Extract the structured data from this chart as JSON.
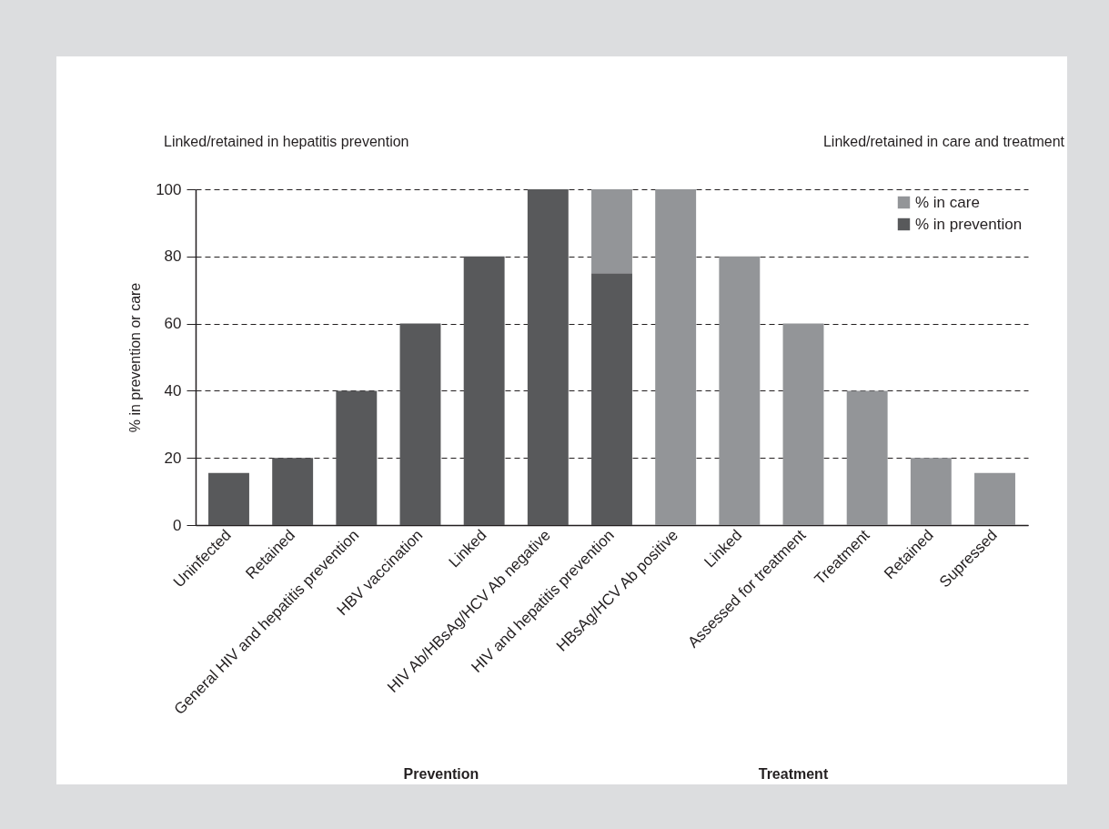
{
  "chart_data": {
    "type": "bar",
    "ylabel": "% in prevention or care",
    "categories": [
      "Uninfected",
      "Retained",
      "General HIV and hepatitis prevention",
      "HBV vaccination",
      "Linked",
      "HIV Ab/HBsAg/HCV Ab negative",
      "HIV and hepatitis prevention",
      "HBsAg/HCV Ab positive",
      "Linked",
      "Assessed for treatment",
      "Treatment",
      "Retained",
      "Supressed"
    ],
    "series": [
      {
        "name": "% in prevention",
        "color": "#58595b",
        "values": [
          15.5,
          20,
          40,
          60,
          80,
          100,
          75,
          null,
          null,
          null,
          null,
          null,
          null
        ]
      },
      {
        "name": "% in care",
        "color": "#939598",
        "values": [
          null,
          null,
          null,
          null,
          null,
          null,
          25,
          100,
          80,
          60,
          40,
          20,
          15.5
        ]
      }
    ],
    "stacked": true,
    "ylim": [
      0,
      100
    ],
    "yticks": [
      0,
      20,
      40,
      60,
      80,
      100
    ],
    "grid": "y",
    "legend": "top right",
    "annotations": [
      "Linked/retained in hepatitis prevention",
      "Linked/retained in care and treatment",
      "Prevention",
      "Treatment"
    ]
  }
}
